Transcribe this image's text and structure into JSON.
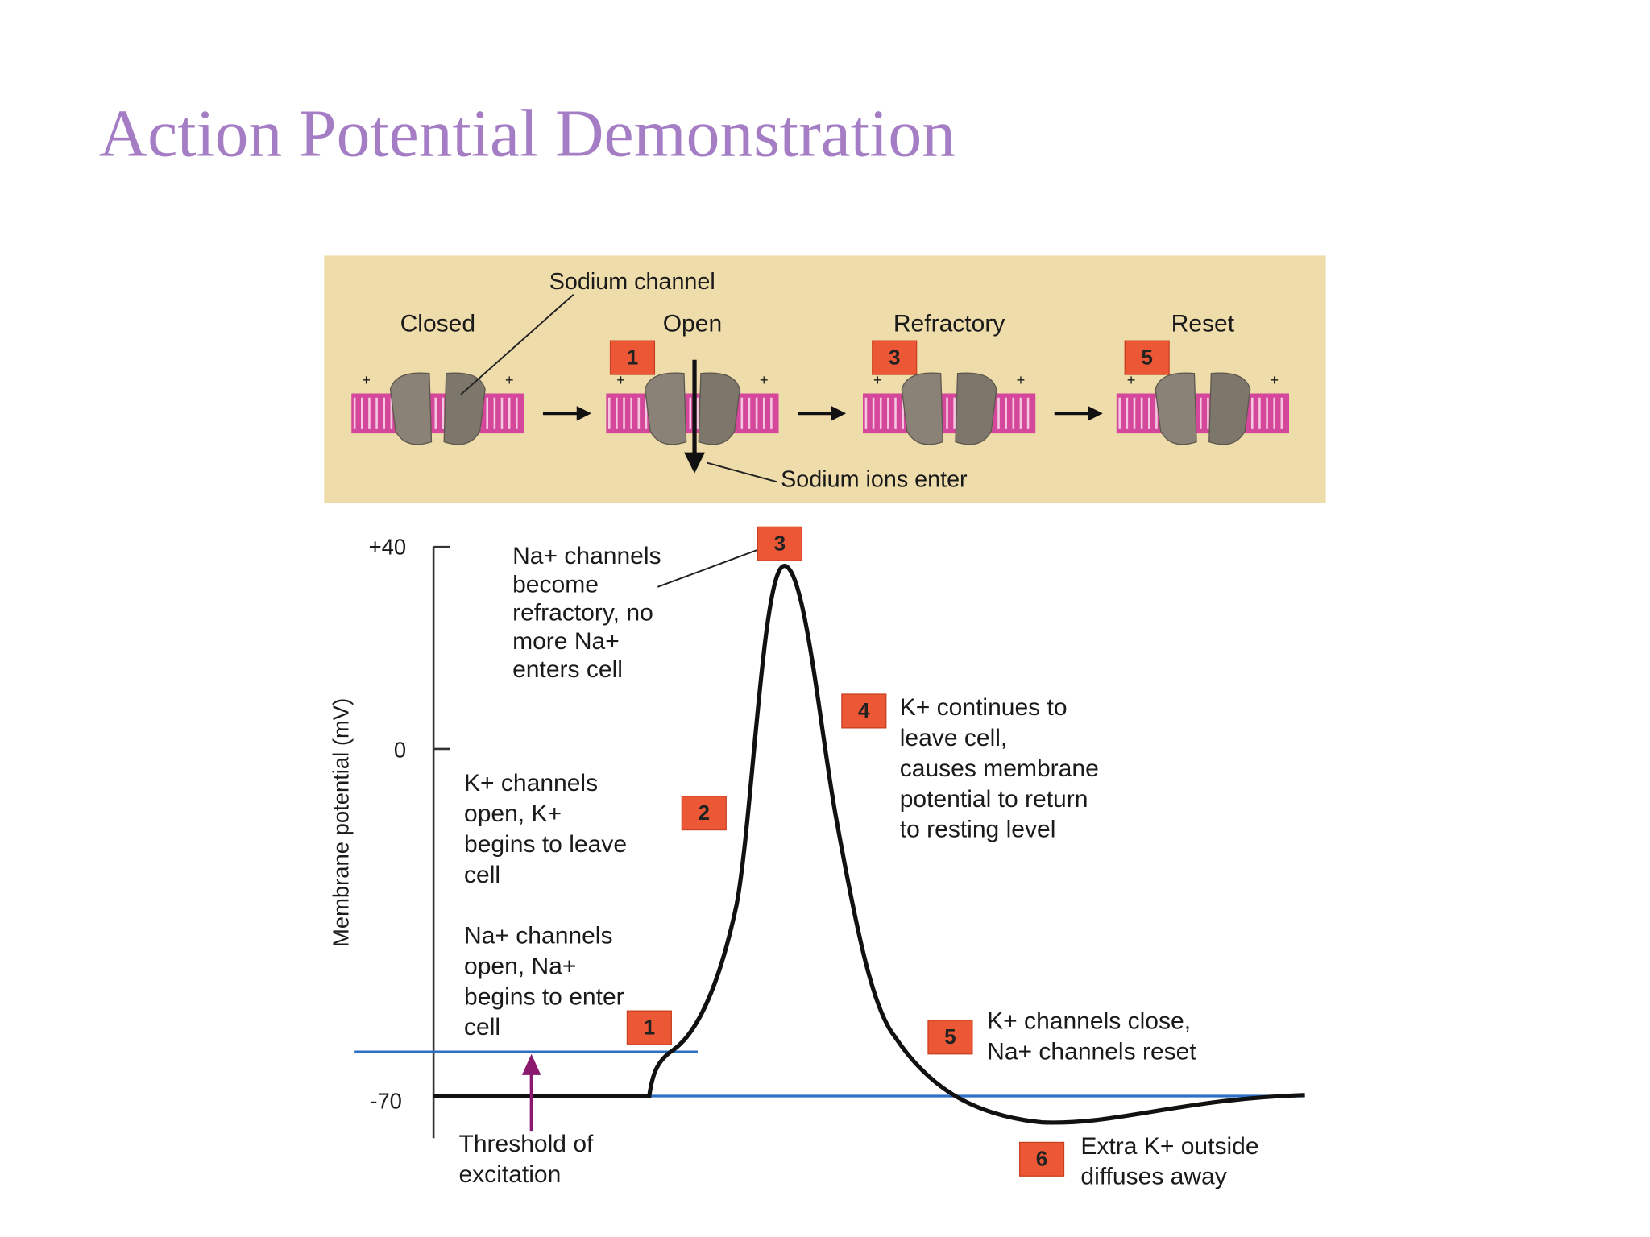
{
  "title": "Action Potential Demonstration",
  "channel_panel": {
    "channel_label": "Sodium channel",
    "stages": [
      {
        "label": "Closed"
      },
      {
        "label": "Open",
        "badge": "1"
      },
      {
        "label": "Refractory",
        "badge": "3"
      },
      {
        "label": "Reset",
        "badge": "5"
      }
    ],
    "ions_label": "Sodium ions enter"
  },
  "graph": {
    "y_axis_label": "Membrane potential (mV)",
    "y_ticks": [
      "+40",
      "0",
      "-70"
    ],
    "annotations": [
      {
        "badge": "3",
        "lines": [
          "Na+ channels",
          "become",
          "refractory, no",
          "more Na+",
          "enters cell"
        ]
      },
      {
        "badge": "4",
        "lines": [
          "K+ continues to",
          "leave cell,",
          "causes membrane",
          "potential to return",
          "to resting level"
        ]
      },
      {
        "badge": "2",
        "lines": [
          "K+ channels",
          "open, K+",
          "begins to leave",
          "cell"
        ]
      },
      {
        "badge": "1",
        "lines": [
          "Na+ channels",
          "open, Na+",
          "begins to enter",
          "cell"
        ]
      },
      {
        "badge": "5",
        "lines": [
          "K+ channels close,",
          "Na+ channels reset"
        ]
      },
      {
        "badge": "6",
        "lines": [
          "Extra K+ outside",
          "diffuses away"
        ]
      }
    ],
    "threshold_label": [
      "Threshold of",
      "excitation"
    ]
  }
}
